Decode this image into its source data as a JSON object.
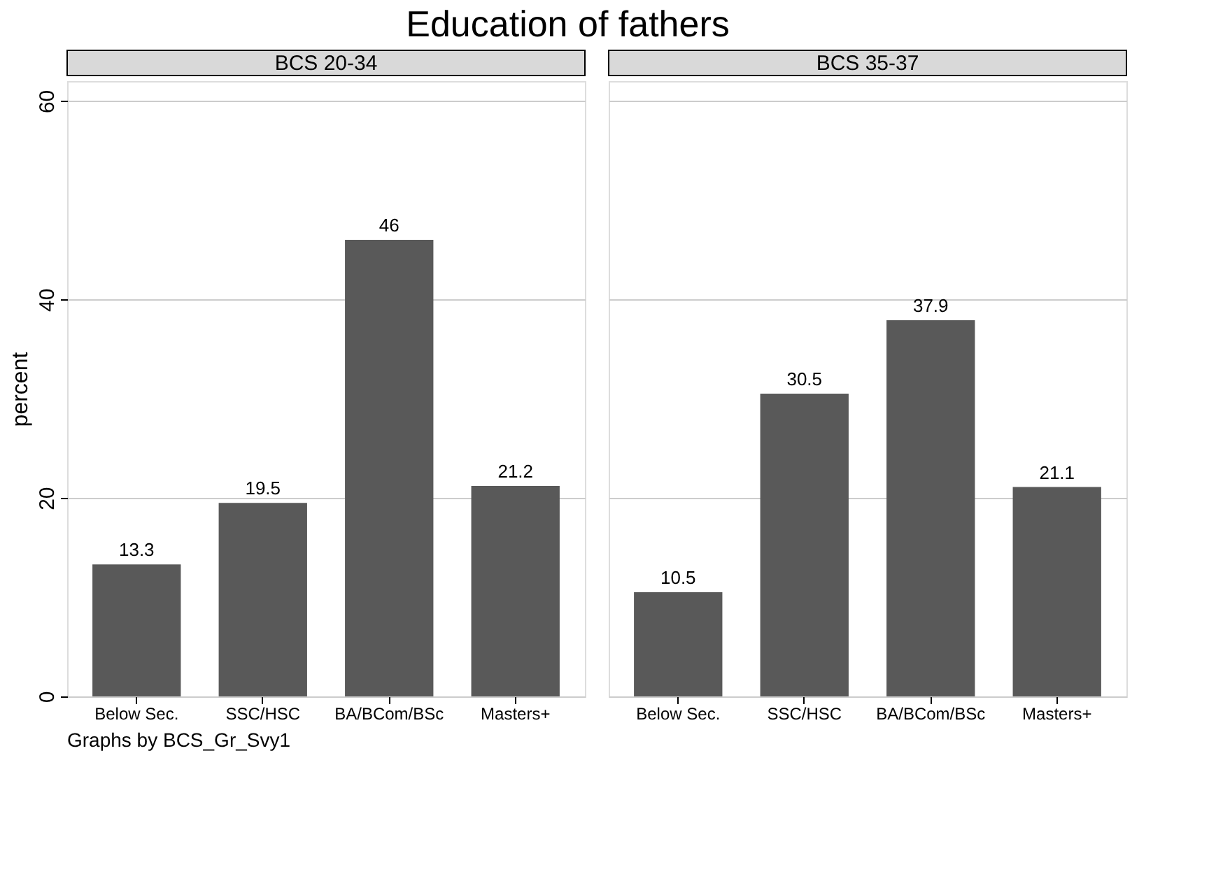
{
  "chart_data": [
    {
      "type": "bar",
      "title": "Education of fathers",
      "subtitle": "BCS 20-34",
      "ylabel": "percent",
      "categories": [
        "Below Sec.",
        "SSC/HSC",
        "BA/BCom/BSc",
        "Masters+"
      ],
      "values": [
        13.3,
        19.5,
        46,
        21.2
      ],
      "color": "#595959",
      "data_labels": true,
      "ylim": [
        0,
        62
      ],
      "yticks": [
        0,
        20,
        40,
        60
      ],
      "grid": "y",
      "annotations": [
        "Graphs by BCS_Gr_Svy1"
      ]
    },
    {
      "type": "bar",
      "subtitle": "BCS 35-37",
      "categories": [
        "Below Sec.",
        "SSC/HSC",
        "BA/BCom/BSc",
        "Masters+"
      ],
      "values": [
        10.5,
        30.5,
        37.9,
        21.1
      ],
      "color": "#595959",
      "data_labels": true,
      "ylim": [
        0,
        62
      ],
      "yticks": [
        0,
        20,
        40,
        60
      ],
      "grid": "y",
      "tick_labels": "x"
    }
  ]
}
